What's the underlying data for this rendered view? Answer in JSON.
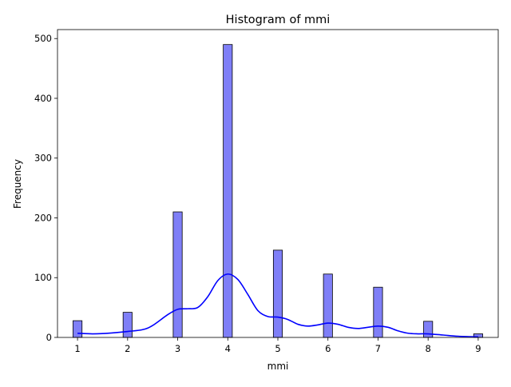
{
  "chart_data": {
    "type": "bar",
    "title": "Histogram of mmi",
    "xlabel": "mmi",
    "ylabel": "Frequency",
    "xlim": [
      0.6,
      9.4
    ],
    "ylim": [
      0,
      515
    ],
    "xticks": [
      "1",
      "2",
      "3",
      "4",
      "5",
      "6",
      "7",
      "8",
      "9"
    ],
    "yticks": [
      "0",
      "100",
      "200",
      "300",
      "400",
      "500"
    ],
    "bar_width": 0.18,
    "bars": [
      {
        "x": 1,
        "value": 28
      },
      {
        "x": 2,
        "value": 42
      },
      {
        "x": 3,
        "value": 210
      },
      {
        "x": 4,
        "value": 490
      },
      {
        "x": 5,
        "value": 146
      },
      {
        "x": 6,
        "value": 106
      },
      {
        "x": 7,
        "value": 84
      },
      {
        "x": 8,
        "value": 27
      },
      {
        "x": 9,
        "value": 6
      }
    ],
    "kde_line": {
      "x": [
        1.0,
        1.3,
        1.6,
        2.0,
        2.3,
        2.5,
        2.8,
        3.0,
        3.2,
        3.4,
        3.6,
        3.8,
        4.0,
        4.2,
        4.4,
        4.6,
        4.8,
        5.0,
        5.2,
        5.4,
        5.6,
        5.8,
        6.0,
        6.2,
        6.4,
        6.6,
        6.8,
        7.0,
        7.2,
        7.4,
        7.6,
        7.8,
        8.0,
        8.3,
        8.6,
        9.0
      ],
      "y": [
        7,
        6,
        7,
        10,
        13,
        20,
        38,
        47,
        48,
        50,
        68,
        95,
        106,
        97,
        72,
        45,
        35,
        34,
        30,
        22,
        19,
        21,
        24,
        22,
        17,
        15,
        17,
        19,
        17,
        11,
        7,
        6,
        6,
        4,
        2,
        1
      ]
    },
    "colors": {
      "bar_fill": "#7f7ff7",
      "bar_edge": "#000000",
      "kde_line": "#0000ff"
    },
    "grid": false,
    "legend": "none"
  }
}
